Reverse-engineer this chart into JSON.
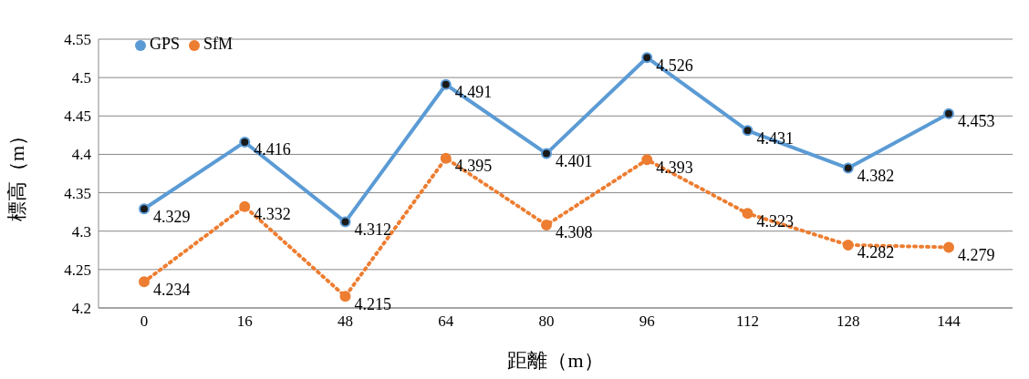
{
  "chart_data": {
    "type": "line",
    "xlabel": "距離（m）",
    "ylabel": "標高（m）",
    "categories": [
      "0",
      "16",
      "48",
      "64",
      "80",
      "96",
      "112",
      "128",
      "144"
    ],
    "series": [
      {
        "name": "GPS",
        "color": "#5b9bd5",
        "line_style": "solid",
        "values": [
          4.329,
          4.416,
          4.312,
          4.491,
          4.401,
          4.526,
          4.431,
          4.382,
          4.453
        ]
      },
      {
        "name": "SfM",
        "color": "#ed7d31",
        "line_style": "dotted",
        "values": [
          4.234,
          4.332,
          4.215,
          4.395,
          4.308,
          4.393,
          4.323,
          4.282,
          4.279
        ]
      }
    ],
    "ylim": [
      4.2,
      4.55
    ],
    "yticks": [
      4.2,
      4.25,
      4.3,
      4.35,
      4.4,
      4.45,
      4.5,
      4.55
    ],
    "grid": "y",
    "legend": "top left",
    "marker": "circle",
    "data_labels": true
  }
}
